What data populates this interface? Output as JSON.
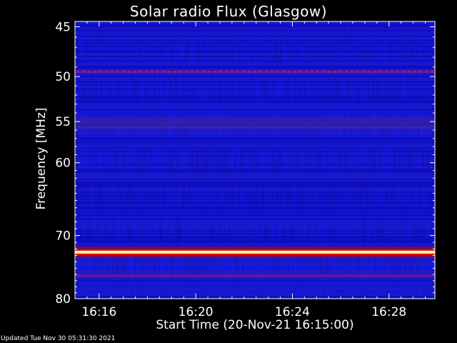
{
  "chart_data": {
    "type": "heatmap",
    "title": "Solar radio Flux (Glasgow)",
    "xlabel": "Start Time (20-Nov-21 16:15:00)",
    "ylabel": "Frequency [MHz]",
    "x_ticks": [
      "16:16",
      "16:20",
      "16:24",
      "16:28"
    ],
    "x_tick_minutes": [
      16,
      20,
      24,
      28
    ],
    "xlim_minutes": [
      15.0,
      29.9
    ],
    "y_ticks": [
      45,
      50,
      55,
      60,
      70,
      80
    ],
    "ylim": [
      44.5,
      80
    ],
    "y_scale": "log",
    "grid": false,
    "bands": [
      {
        "freq": 49.5,
        "level": "medium",
        "note": "dotted red line"
      },
      {
        "freq": 55.2,
        "level": "low"
      },
      {
        "freq": 72.5,
        "level": "very-high"
      },
      {
        "freq": 76.2,
        "level": "medium"
      }
    ]
  },
  "footer": {
    "text": "Updated Tue Nov 30 05:31:30 2021"
  },
  "colors": {
    "background": "#000000",
    "base_blue": "#1515ff",
    "hot": "#ffff99"
  }
}
